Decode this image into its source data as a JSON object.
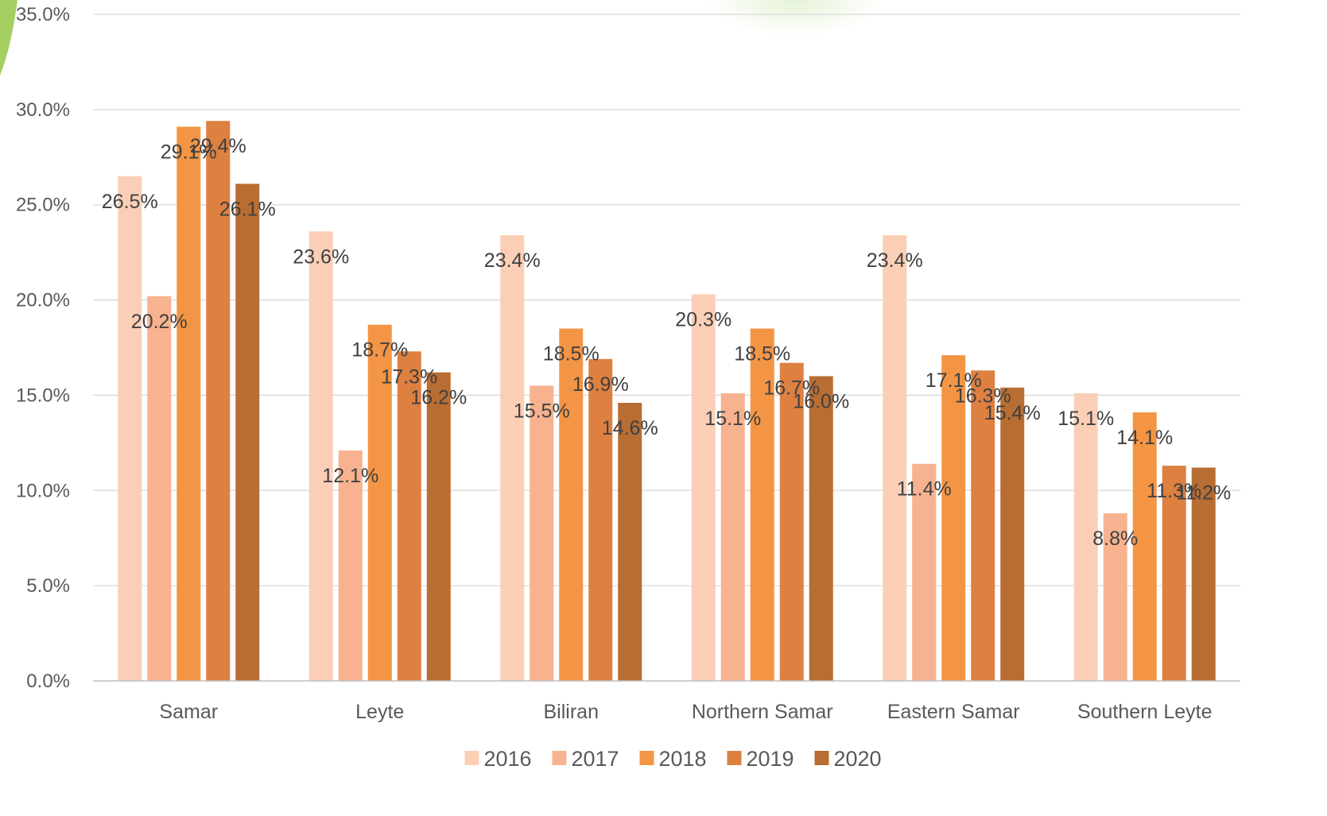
{
  "chart_data": {
    "type": "bar",
    "categories": [
      "Samar",
      "Leyte",
      "Biliran",
      "Northern Samar",
      "Eastern Samar",
      "Southern Leyte"
    ],
    "series": [
      {
        "name": "2016",
        "color": "#FBCFB6",
        "values": [
          26.5,
          23.6,
          23.4,
          20.3,
          23.4,
          15.1
        ]
      },
      {
        "name": "2017",
        "color": "#F7B28F",
        "values": [
          20.2,
          12.1,
          15.5,
          15.1,
          11.4,
          8.8
        ]
      },
      {
        "name": "2018",
        "color": "#F39545",
        "values": [
          29.1,
          18.7,
          18.5,
          18.5,
          17.1,
          14.1
        ]
      },
      {
        "name": "2019",
        "color": "#DD8040",
        "values": [
          29.4,
          17.3,
          16.9,
          16.7,
          16.3,
          11.3
        ]
      },
      {
        "name": "2020",
        "color": "#B86D32",
        "values": [
          26.1,
          16.2,
          14.6,
          16.0,
          15.4,
          11.2
        ]
      }
    ],
    "data_labels": [
      [
        "26.5%",
        "23.6%",
        "23.4%",
        "20.3%",
        "23.4%",
        "15.1%"
      ],
      [
        "20.2%",
        "12.1%",
        "15.5%",
        "15.1%",
        "11.4%",
        "8.8%"
      ],
      [
        "29.1%",
        "18.7%",
        "18.5%",
        "18.5%",
        "17.1%",
        "14.1%"
      ],
      [
        "29.4%",
        "17.3%",
        "16.9%",
        "16.7%",
        "16.3%",
        "11.3%"
      ],
      [
        "26.1%",
        "16.2%",
        "14.6%",
        "16.0%",
        "15.4%",
        "11.2%"
      ]
    ],
    "y_ticks": [
      0,
      5,
      10,
      15,
      20,
      25,
      30,
      35
    ],
    "y_tick_labels": [
      "0.0%",
      "5.0%",
      "10.0%",
      "15.0%",
      "20.0%",
      "25.0%",
      "30.0%",
      "35.0%"
    ],
    "ylim": [
      0,
      35
    ],
    "grid": true,
    "legend_position": "bottom",
    "grid_color": "#D9D9D9"
  }
}
